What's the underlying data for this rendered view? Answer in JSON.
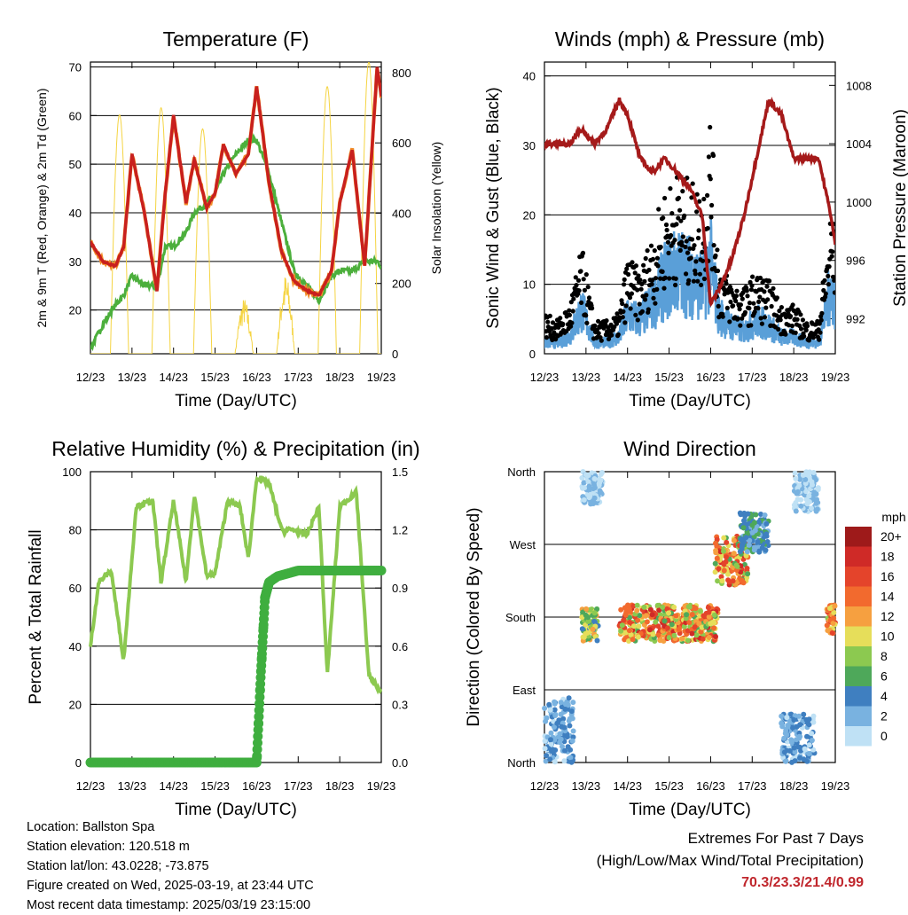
{
  "colors": {
    "red": "#c8201e",
    "orange": "#f28c28",
    "green": "#4caf3c",
    "yellow": "#f5d442",
    "maroon": "#a51a1a",
    "blue": "#5a9fd8",
    "black": "#000000",
    "rh": "#8cc950",
    "precip": "#3fae3f",
    "accent": "#c0272d"
  },
  "x_ticks": [
    "12/23",
    "13/23",
    "14/23",
    "15/23",
    "16/23",
    "17/23",
    "18/23",
    "19/23"
  ],
  "chart_data": [
    {
      "type": "line",
      "title": "Temperature (F)",
      "xlabel": "Time (Day/UTC)",
      "ylabel": "2m & 9m T (Red, Orange) & 2m Td (Green)",
      "y2label": "Solar Insolation (Yellow)",
      "ylim": [
        11,
        71
      ],
      "y2lim": [
        0,
        830
      ],
      "yticks": [
        20,
        30,
        40,
        50,
        60,
        70
      ],
      "y2ticks": [
        0,
        200,
        400,
        600,
        800
      ],
      "x": [
        12.0,
        12.3,
        12.6,
        12.8,
        13.0,
        13.3,
        13.6,
        13.8,
        14.0,
        14.3,
        14.5,
        14.8,
        15.0,
        15.2,
        15.5,
        15.8,
        16.0,
        16.3,
        16.6,
        16.9,
        17.2,
        17.5,
        17.8,
        18.0,
        18.3,
        18.6,
        18.9,
        19.0
      ],
      "series": [
        {
          "name": "2m T",
          "values": [
            34,
            30,
            29,
            33,
            52,
            40,
            24,
            44,
            60,
            42,
            51,
            41,
            44,
            54,
            48,
            52,
            66,
            46,
            32,
            26,
            24,
            23,
            28,
            42,
            53,
            29,
            70,
            64
          ]
        },
        {
          "name": "2m Td",
          "values": [
            12,
            17,
            21,
            23,
            27,
            25,
            25,
            33,
            33,
            36,
            40,
            42,
            44,
            48,
            52,
            55,
            55,
            48,
            38,
            28,
            25,
            22,
            27,
            28,
            28,
            30,
            30,
            29
          ]
        }
      ],
      "solar": {
        "peaks_x": [
          12.7,
          13.7,
          14.7,
          15.7,
          16.7,
          17.7,
          18.7
        ],
        "peaks_y": [
          680,
          700,
          640,
          160,
          230,
          760,
          830
        ]
      }
    },
    {
      "type": "line",
      "title": "Winds (mph) & Pressure (mb)",
      "xlabel": "Time (Day/UTC)",
      "ylabel": "Sonic Wind & Gust (Blue, Black)",
      "y2label": "Station Pressure (Maroon)",
      "ylim": [
        0,
        42
      ],
      "y2lim": [
        989.6,
        1009.6
      ],
      "yticks": [
        0,
        10,
        20,
        30,
        40
      ],
      "y2ticks": [
        992,
        996,
        1000,
        1004,
        1008
      ],
      "x": [
        12.0,
        12.3,
        12.6,
        12.9,
        13.2,
        13.5,
        13.8,
        14.0,
        14.3,
        14.6,
        14.9,
        15.2,
        15.5,
        15.8,
        16.0,
        16.2,
        16.5,
        16.8,
        17.1,
        17.4,
        17.7,
        18.0,
        18.3,
        18.6,
        18.9,
        19.0
      ],
      "series": [
        {
          "name": "Wind",
          "values": [
            2,
            2,
            3,
            8,
            2,
            2,
            3,
            7,
            6,
            9,
            13,
            15,
            14,
            12,
            16,
            7,
            5,
            4,
            6,
            5,
            3,
            3,
            2,
            2,
            12,
            9
          ]
        },
        {
          "name": "Gust",
          "values": [
            5,
            4,
            6,
            13,
            4,
            4,
            5,
            12,
            10,
            15,
            20,
            22,
            21,
            20,
            30,
            11,
            9,
            8,
            10,
            9,
            6,
            6,
            4,
            4,
            18,
            15
          ]
        },
        {
          "name": "Pressure",
          "values": [
            1004,
            1004,
            1004,
            1005,
            1004,
            1005,
            1007,
            1006,
            1003,
            1002,
            1003,
            1002,
            1001,
            999,
            993,
            994,
            996,
            999,
            1003,
            1007,
            1006,
            1003,
            1003,
            1003,
            999,
            997
          ]
        }
      ]
    },
    {
      "type": "line",
      "title": "Relative Humidity (%) & Precipitation (in)",
      "xlabel": "Time (Day/UTC)",
      "ylabel": "Percent & Total Rainfall",
      "ylim": [
        0,
        100
      ],
      "y2lim": [
        0,
        1.5
      ],
      "yticks": [
        0,
        20,
        40,
        60,
        80,
        100
      ],
      "y2ticks": [
        "0.0",
        "0.3",
        "0.6",
        "0.9",
        "1.2",
        "1.5"
      ],
      "x": [
        12.0,
        12.2,
        12.5,
        12.8,
        13.1,
        13.5,
        13.7,
        14.0,
        14.3,
        14.5,
        14.8,
        15.0,
        15.3,
        15.6,
        15.8,
        16.0,
        16.3,
        16.6,
        16.9,
        17.2,
        17.5,
        17.7,
        18.0,
        18.4,
        18.7,
        19.0
      ],
      "series": [
        {
          "name": "RH",
          "values": [
            40,
            62,
            66,
            35,
            88,
            90,
            62,
            90,
            62,
            92,
            64,
            65,
            90,
            88,
            70,
            98,
            96,
            80,
            80,
            78,
            88,
            30,
            88,
            93,
            30,
            24
          ]
        },
        {
          "name": "Precip",
          "x": [
            12.0,
            16.0,
            16.1,
            16.2,
            16.3,
            16.5,
            17.0,
            19.0
          ],
          "values": [
            0,
            0,
            0.45,
            0.85,
            0.93,
            0.96,
            0.99,
            0.99
          ]
        }
      ]
    },
    {
      "type": "scatter",
      "title": "Wind Direction",
      "xlabel": "Time (Day/UTC)",
      "ylabel": "Direction (Colored By Speed)",
      "ylim": [
        0,
        360
      ],
      "yticks": [
        "North",
        "East",
        "South",
        "West",
        "North"
      ],
      "legend_title": "mph",
      "legend_labels": [
        "20+",
        "18",
        "16",
        "14",
        "12",
        "10",
        "8",
        "6",
        "4",
        "2",
        "0"
      ],
      "legend_colors": [
        "#9e1a1a",
        "#cf2a27",
        "#e4442b",
        "#f26a2e",
        "#f6a040",
        "#e6de5a",
        "#8cc950",
        "#4ea85a",
        "#3f7fc0",
        "#79b2e0",
        "#bfe1f5"
      ],
      "clusters": [
        {
          "x": [
            12.0,
            12.7
          ],
          "dir": [
            0,
            80
          ],
          "speed": [
            0,
            5
          ]
        },
        {
          "x": [
            12.9,
            13.4
          ],
          "dir": [
            320,
            360
          ],
          "speed": [
            0,
            2
          ]
        },
        {
          "x": [
            12.9,
            13.3
          ],
          "dir": [
            150,
            190
          ],
          "speed": [
            4,
            12
          ]
        },
        {
          "x": [
            13.8,
            16.2
          ],
          "dir": [
            150,
            195
          ],
          "speed": [
            6,
            18
          ]
        },
        {
          "x": [
            16.1,
            16.9
          ],
          "dir": [
            220,
            280
          ],
          "speed": [
            6,
            18
          ]
        },
        {
          "x": [
            16.7,
            17.4
          ],
          "dir": [
            260,
            310
          ],
          "speed": [
            2,
            6
          ]
        },
        {
          "x": [
            17.7,
            18.5
          ],
          "dir": [
            0,
            60
          ],
          "speed": [
            0,
            5
          ]
        },
        {
          "x": [
            18.0,
            18.6
          ],
          "dir": [
            310,
            360
          ],
          "speed": [
            0,
            2
          ]
        },
        {
          "x": [
            18.8,
            19.0
          ],
          "dir": [
            160,
            195
          ],
          "speed": [
            8,
            16
          ]
        }
      ]
    }
  ],
  "info": {
    "location": "Location: Ballston Spa",
    "elevation": "Station elevation: 120.518 m",
    "latlon": "Station lat/lon: 43.0228; -73.875",
    "created": "Figure created on Wed, 2025-03-19, at 23:44 UTC",
    "timestamp": "Most recent data timestamp: 2025/03/19 23:15:00"
  },
  "extremes": {
    "title": "Extremes For Past 7 Days",
    "subtitle": "(High/Low/Max Wind/Total Precipitation)",
    "values": "70.3/23.3/21.4/0.99"
  }
}
